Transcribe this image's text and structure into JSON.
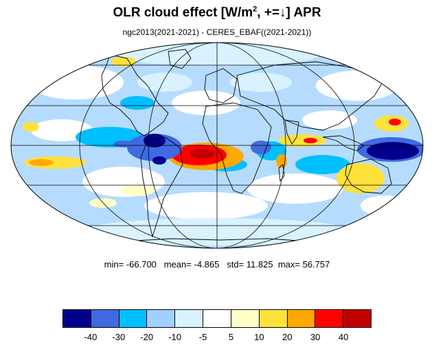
{
  "title": {
    "main": "OLR cloud effect [W/m",
    "superscript": "2",
    "rest": ", +=↓]  APR"
  },
  "subtitle": "ngc2013(2021-2021) - CERES_EBAF((2021-2021))",
  "stats": {
    "min_label": "min=",
    "min": "-66.700",
    "mean_label": "mean=",
    "mean": "-4.865",
    "std_label": "std=",
    "std": "11.825",
    "max_label": "max=",
    "max": "56.757"
  },
  "colorbar": {
    "colors": [
      "#00008b",
      "#4169e1",
      "#00bfff",
      "#a0d0ff",
      "#d8f2ff",
      "#ffffff",
      "#ffffc8",
      "#ffe13c",
      "#ffa800",
      "#ff0000",
      "#c00000"
    ],
    "labels": [
      "-40",
      "-30",
      "-20",
      "-10",
      "-5",
      "5",
      "10",
      "20",
      "30",
      "40"
    ]
  },
  "map": {
    "projection": "Mollweide",
    "background_color": "#b5dcff"
  }
}
